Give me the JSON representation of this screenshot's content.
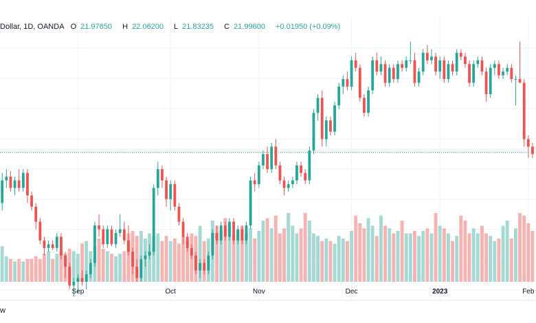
{
  "legend": {
    "symbol": "Dollar, 1D, OANDA",
    "open_label": "O",
    "open": "21.97650",
    "high_label": "H",
    "high": "22.06200",
    "low_label": "L",
    "low": "21.83235",
    "close_label": "C",
    "close": "21.99600",
    "change": "+0.01950 (+0.09%)"
  },
  "footer": {
    "text": "w"
  },
  "colors": {
    "up": "#26a69a",
    "down": "#ef5350",
    "up_volume": "#a6d9d3",
    "down_volume": "#f5b3b1",
    "grid": "#f0f3fa",
    "price_line": "#26a69a"
  },
  "chart_data": {
    "type": "candlestick",
    "x_tick_labels": [
      "Sep",
      "Oct",
      "Nov",
      "Dec",
      "2023",
      "Feb"
    ],
    "x_tick_index": [
      19,
      41,
      62,
      84,
      105,
      126
    ],
    "price_ylim": [
      21.0,
      27.5
    ],
    "last_price": 24.45,
    "grid": true,
    "candles": [
      {
        "o": 22.8,
        "h": 23.2,
        "l": 22.3,
        "c": 23.1
      },
      {
        "o": 23.1,
        "h": 23.9,
        "l": 22.9,
        "c": 23.7
      },
      {
        "o": 23.7,
        "h": 24.0,
        "l": 23.5,
        "c": 23.8
      },
      {
        "o": 23.8,
        "h": 23.95,
        "l": 23.4,
        "c": 23.5
      },
      {
        "o": 23.5,
        "h": 23.8,
        "l": 23.3,
        "c": 23.7
      },
      {
        "o": 23.7,
        "h": 24.0,
        "l": 23.4,
        "c": 23.5
      },
      {
        "o": 23.5,
        "h": 24.0,
        "l": 23.4,
        "c": 23.9
      },
      {
        "o": 23.9,
        "h": 24.0,
        "l": 23.1,
        "c": 23.3
      },
      {
        "o": 23.3,
        "h": 23.4,
        "l": 22.9,
        "c": 23.0
      },
      {
        "o": 23.0,
        "h": 23.1,
        "l": 22.4,
        "c": 22.6
      },
      {
        "o": 22.6,
        "h": 22.7,
        "l": 22.0,
        "c": 22.1
      },
      {
        "o": 22.1,
        "h": 22.2,
        "l": 21.7,
        "c": 21.9
      },
      {
        "o": 21.9,
        "h": 22.1,
        "l": 21.8,
        "c": 22.0
      },
      {
        "o": 22.0,
        "h": 22.1,
        "l": 21.85,
        "c": 21.9
      },
      {
        "o": 21.9,
        "h": 22.3,
        "l": 21.8,
        "c": 22.2
      },
      {
        "o": 22.2,
        "h": 22.3,
        "l": 21.6,
        "c": 21.7
      },
      {
        "o": 21.7,
        "h": 21.8,
        "l": 21.1,
        "c": 21.4
      },
      {
        "o": 21.4,
        "h": 21.5,
        "l": 20.8,
        "c": 20.9
      },
      {
        "o": 20.9,
        "h": 21.1,
        "l": 20.6,
        "c": 21.0
      },
      {
        "o": 21.0,
        "h": 21.2,
        "l": 20.7,
        "c": 21.1
      },
      {
        "o": 21.1,
        "h": 21.3,
        "l": 20.9,
        "c": 21.0
      },
      {
        "o": 21.0,
        "h": 21.3,
        "l": 20.8,
        "c": 21.2
      },
      {
        "o": 21.2,
        "h": 21.6,
        "l": 21.1,
        "c": 21.5
      },
      {
        "o": 21.5,
        "h": 22.6,
        "l": 21.4,
        "c": 22.5
      },
      {
        "o": 22.5,
        "h": 22.8,
        "l": 22.2,
        "c": 22.4
      },
      {
        "o": 22.4,
        "h": 22.5,
        "l": 21.9,
        "c": 22.0
      },
      {
        "o": 22.0,
        "h": 22.5,
        "l": 21.9,
        "c": 22.4
      },
      {
        "o": 22.4,
        "h": 22.5,
        "l": 21.95,
        "c": 22.0
      },
      {
        "o": 22.0,
        "h": 22.4,
        "l": 21.9,
        "c": 22.3
      },
      {
        "o": 22.3,
        "h": 22.8,
        "l": 22.2,
        "c": 22.4
      },
      {
        "o": 22.4,
        "h": 22.6,
        "l": 22.0,
        "c": 22.1
      },
      {
        "o": 22.1,
        "h": 22.5,
        "l": 21.7,
        "c": 21.8
      },
      {
        "o": 21.8,
        "h": 21.9,
        "l": 21.2,
        "c": 21.4
      },
      {
        "o": 21.4,
        "h": 21.6,
        "l": 21.0,
        "c": 21.1
      },
      {
        "o": 21.1,
        "h": 21.7,
        "l": 21.0,
        "c": 21.6
      },
      {
        "o": 21.6,
        "h": 21.8,
        "l": 21.4,
        "c": 21.7
      },
      {
        "o": 21.7,
        "h": 22.0,
        "l": 21.6,
        "c": 21.8
      },
      {
        "o": 21.8,
        "h": 23.6,
        "l": 21.7,
        "c": 23.5
      },
      {
        "o": 23.5,
        "h": 24.2,
        "l": 23.3,
        "c": 24.0
      },
      {
        "o": 24.0,
        "h": 24.1,
        "l": 23.5,
        "c": 23.7
      },
      {
        "o": 23.7,
        "h": 23.8,
        "l": 23.0,
        "c": 23.2
      },
      {
        "o": 23.2,
        "h": 23.7,
        "l": 22.9,
        "c": 23.6
      },
      {
        "o": 23.6,
        "h": 23.7,
        "l": 22.9,
        "c": 23.0
      },
      {
        "o": 23.0,
        "h": 23.1,
        "l": 22.5,
        "c": 22.6
      },
      {
        "o": 22.6,
        "h": 22.7,
        "l": 22.0,
        "c": 22.2
      },
      {
        "o": 22.2,
        "h": 22.3,
        "l": 21.8,
        "c": 21.9
      },
      {
        "o": 21.9,
        "h": 22.0,
        "l": 21.6,
        "c": 21.7
      },
      {
        "o": 21.7,
        "h": 21.8,
        "l": 21.2,
        "c": 21.3
      },
      {
        "o": 21.3,
        "h": 21.6,
        "l": 21.1,
        "c": 21.5
      },
      {
        "o": 21.5,
        "h": 21.6,
        "l": 21.2,
        "c": 21.3
      },
      {
        "o": 21.3,
        "h": 21.8,
        "l": 21.2,
        "c": 21.7
      },
      {
        "o": 21.7,
        "h": 22.4,
        "l": 21.6,
        "c": 22.3
      },
      {
        "o": 22.3,
        "h": 22.5,
        "l": 22.0,
        "c": 22.1
      },
      {
        "o": 22.1,
        "h": 22.6,
        "l": 22.0,
        "c": 22.5
      },
      {
        "o": 22.5,
        "h": 22.6,
        "l": 22.1,
        "c": 22.2
      },
      {
        "o": 22.2,
        "h": 22.7,
        "l": 22.1,
        "c": 22.6
      },
      {
        "o": 22.6,
        "h": 22.7,
        "l": 22.0,
        "c": 22.1
      },
      {
        "o": 22.1,
        "h": 22.5,
        "l": 22.0,
        "c": 22.4
      },
      {
        "o": 22.4,
        "h": 22.5,
        "l": 22.0,
        "c": 22.1
      },
      {
        "o": 22.1,
        "h": 22.6,
        "l": 22.0,
        "c": 22.5
      },
      {
        "o": 22.5,
        "h": 23.8,
        "l": 22.4,
        "c": 23.7
      },
      {
        "o": 23.7,
        "h": 23.9,
        "l": 23.4,
        "c": 23.6
      },
      {
        "o": 23.6,
        "h": 24.2,
        "l": 23.5,
        "c": 24.1
      },
      {
        "o": 24.1,
        "h": 24.5,
        "l": 24.0,
        "c": 24.4
      },
      {
        "o": 24.4,
        "h": 24.6,
        "l": 23.9,
        "c": 24.0
      },
      {
        "o": 24.0,
        "h": 24.7,
        "l": 23.9,
        "c": 24.6
      },
      {
        "o": 24.6,
        "h": 24.8,
        "l": 24.0,
        "c": 24.1
      },
      {
        "o": 24.1,
        "h": 24.2,
        "l": 23.6,
        "c": 23.7
      },
      {
        "o": 23.7,
        "h": 23.8,
        "l": 23.3,
        "c": 23.5
      },
      {
        "o": 23.5,
        "h": 23.7,
        "l": 23.4,
        "c": 23.6
      },
      {
        "o": 23.6,
        "h": 23.8,
        "l": 23.5,
        "c": 23.7
      },
      {
        "o": 23.7,
        "h": 24.2,
        "l": 23.6,
        "c": 24.1
      },
      {
        "o": 24.1,
        "h": 24.2,
        "l": 23.8,
        "c": 23.9
      },
      {
        "o": 23.9,
        "h": 24.0,
        "l": 23.6,
        "c": 23.7
      },
      {
        "o": 23.7,
        "h": 24.6,
        "l": 23.6,
        "c": 24.5
      },
      {
        "o": 24.5,
        "h": 25.6,
        "l": 24.4,
        "c": 25.5
      },
      {
        "o": 25.5,
        "h": 26.0,
        "l": 25.3,
        "c": 25.9
      },
      {
        "o": 25.9,
        "h": 26.1,
        "l": 24.6,
        "c": 24.8
      },
      {
        "o": 24.8,
        "h": 25.4,
        "l": 24.6,
        "c": 25.3
      },
      {
        "o": 25.3,
        "h": 25.4,
        "l": 24.9,
        "c": 25.0
      },
      {
        "o": 25.0,
        "h": 25.8,
        "l": 24.9,
        "c": 25.7
      },
      {
        "o": 25.7,
        "h": 26.3,
        "l": 25.6,
        "c": 26.2
      },
      {
        "o": 26.2,
        "h": 26.5,
        "l": 26.0,
        "c": 26.4
      },
      {
        "o": 26.4,
        "h": 26.6,
        "l": 26.1,
        "c": 26.2
      },
      {
        "o": 26.2,
        "h": 27.0,
        "l": 26.1,
        "c": 26.9
      },
      {
        "o": 26.9,
        "h": 27.1,
        "l": 26.6,
        "c": 26.7
      },
      {
        "o": 26.7,
        "h": 26.8,
        "l": 25.8,
        "c": 25.9
      },
      {
        "o": 25.9,
        "h": 26.0,
        "l": 25.4,
        "c": 25.5
      },
      {
        "o": 25.5,
        "h": 26.2,
        "l": 25.4,
        "c": 26.1
      },
      {
        "o": 26.1,
        "h": 27.0,
        "l": 26.0,
        "c": 26.9
      },
      {
        "o": 26.9,
        "h": 27.1,
        "l": 26.5,
        "c": 26.6
      },
      {
        "o": 26.6,
        "h": 27.0,
        "l": 26.5,
        "c": 26.8
      },
      {
        "o": 26.8,
        "h": 26.9,
        "l": 26.2,
        "c": 26.3
      },
      {
        "o": 26.3,
        "h": 26.8,
        "l": 26.2,
        "c": 26.7
      },
      {
        "o": 26.7,
        "h": 26.8,
        "l": 26.3,
        "c": 26.4
      },
      {
        "o": 26.4,
        "h": 26.9,
        "l": 26.3,
        "c": 26.8
      },
      {
        "o": 26.8,
        "h": 26.9,
        "l": 26.6,
        "c": 26.7
      },
      {
        "o": 26.7,
        "h": 27.0,
        "l": 26.6,
        "c": 26.9
      },
      {
        "o": 26.9,
        "h": 27.4,
        "l": 26.8,
        "c": 26.9
      },
      {
        "o": 26.9,
        "h": 27.1,
        "l": 26.2,
        "c": 26.3
      },
      {
        "o": 26.3,
        "h": 26.7,
        "l": 26.2,
        "c": 26.6
      },
      {
        "o": 26.6,
        "h": 27.2,
        "l": 26.5,
        "c": 27.1
      },
      {
        "o": 27.1,
        "h": 27.3,
        "l": 26.8,
        "c": 26.9
      },
      {
        "o": 26.9,
        "h": 27.2,
        "l": 26.8,
        "c": 27.0
      },
      {
        "o": 27.0,
        "h": 27.1,
        "l": 26.5,
        "c": 26.6
      },
      {
        "o": 26.6,
        "h": 27.0,
        "l": 26.4,
        "c": 26.9
      },
      {
        "o": 26.9,
        "h": 27.0,
        "l": 26.3,
        "c": 26.4
      },
      {
        "o": 26.4,
        "h": 26.9,
        "l": 26.3,
        "c": 26.8
      },
      {
        "o": 26.8,
        "h": 26.9,
        "l": 26.5,
        "c": 26.6
      },
      {
        "o": 26.6,
        "h": 27.2,
        "l": 26.5,
        "c": 27.1
      },
      {
        "o": 27.1,
        "h": 27.2,
        "l": 26.9,
        "c": 27.0
      },
      {
        "o": 27.0,
        "h": 27.1,
        "l": 26.7,
        "c": 26.8
      },
      {
        "o": 26.8,
        "h": 26.9,
        "l": 26.2,
        "c": 26.3
      },
      {
        "o": 26.3,
        "h": 26.9,
        "l": 26.2,
        "c": 26.8
      },
      {
        "o": 26.8,
        "h": 27.0,
        "l": 26.7,
        "c": 26.9
      },
      {
        "o": 26.9,
        "h": 27.0,
        "l": 26.5,
        "c": 26.6
      },
      {
        "o": 26.6,
        "h": 26.7,
        "l": 25.8,
        "c": 26.0
      },
      {
        "o": 26.0,
        "h": 26.8,
        "l": 25.9,
        "c": 26.7
      },
      {
        "o": 26.7,
        "h": 26.9,
        "l": 26.5,
        "c": 26.8
      },
      {
        "o": 26.8,
        "h": 26.9,
        "l": 26.4,
        "c": 26.5
      },
      {
        "o": 26.5,
        "h": 26.7,
        "l": 26.4,
        "c": 26.6
      },
      {
        "o": 26.6,
        "h": 26.8,
        "l": 26.5,
        "c": 26.7
      },
      {
        "o": 26.7,
        "h": 26.8,
        "l": 26.3,
        "c": 26.4
      },
      {
        "o": 26.4,
        "h": 26.5,
        "l": 25.7,
        "c": 26.4
      },
      {
        "o": 26.4,
        "h": 27.4,
        "l": 26.3,
        "c": 26.3
      },
      {
        "o": 26.3,
        "h": 26.4,
        "l": 24.6,
        "c": 24.8
      },
      {
        "o": 24.8,
        "h": 24.9,
        "l": 24.3,
        "c": 24.6
      },
      {
        "o": 24.6,
        "h": 24.7,
        "l": 24.3,
        "c": 24.4
      }
    ],
    "volumes": [
      0.6,
      0.7,
      0.5,
      0.45,
      0.4,
      0.45,
      0.4,
      0.45,
      0.45,
      0.5,
      0.45,
      0.55,
      0.6,
      0.45,
      0.55,
      0.6,
      0.55,
      0.65,
      0.6,
      0.55,
      0.75,
      0.8,
      0.6,
      0.7,
      0.85,
      0.65,
      0.6,
      0.55,
      0.5,
      0.55,
      0.6,
      0.95,
      1.0,
      0.9,
      1.0,
      0.85,
      0.95,
      0.9,
      0.95,
      0.8,
      0.9,
      0.8,
      0.85,
      0.75,
      0.9,
      0.8,
      0.95,
      0.9,
      1.1,
      0.8,
      0.85,
      1.2,
      1.1,
      1.0,
      1.25,
      1.1,
      0.9,
      1.0,
      1.1,
      0.95,
      1.05,
      0.85,
      1.0,
      1.2,
      1.25,
      1.05,
      1.3,
      0.95,
      1.05,
      1.35,
      1.1,
      0.95,
      1.05,
      1.35,
      1.2,
      0.95,
      0.9,
      0.8,
      0.85,
      0.8,
      0.75,
      0.9,
      0.85,
      0.8,
      1.0,
      1.3,
      1.15,
      1.05,
      1.25,
      1.1,
      0.9,
      1.3,
      1.1,
      1.05,
      0.95,
      1.0,
      1.2,
      0.95,
      0.95,
      1.0,
      0.9,
      1.0,
      1.05,
      0.95,
      1.35,
      1.1,
      1.05,
      0.95,
      0.8,
      0.9,
      1.3,
      1.2,
      0.95,
      1.05,
      0.95,
      1.1,
      0.95,
      0.9,
      0.8,
      0.85,
      1.1,
      1.2,
      0.85,
      1.05,
      1.35,
      1.3,
      1.15,
      1.0
    ]
  }
}
